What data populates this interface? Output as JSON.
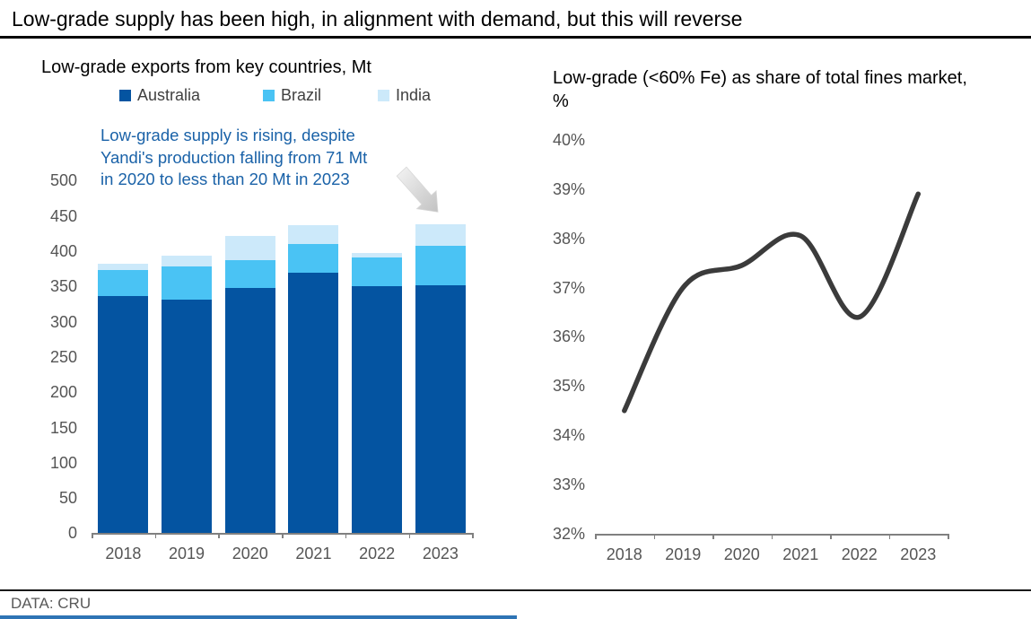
{
  "page": {
    "title": "Low-grade supply has been high, in alignment with demand, but this will reverse",
    "source": "DATA: CRU",
    "colors": {
      "title_rule": "#000000",
      "axis": "#808080",
      "tick_text": "#555555",
      "annotation_text": "#1A62A8",
      "arrow_fill_light": "#F0F0F0",
      "arrow_fill_dark": "#C4C4C4",
      "bottom_bar": "#2E74B5"
    }
  },
  "chart_data": [
    {
      "type": "bar",
      "stacked": true,
      "title": "Low-grade exports from key countries, Mt",
      "categories": [
        "2018",
        "2019",
        "2020",
        "2021",
        "2022",
        "2023"
      ],
      "series": [
        {
          "name": "Australia",
          "color": "#0454A1",
          "values": [
            337,
            331,
            348,
            370,
            350,
            352
          ]
        },
        {
          "name": "Brazil",
          "color": "#4AC3F4",
          "values": [
            36,
            47,
            39,
            40,
            41,
            55
          ]
        },
        {
          "name": "India",
          "color": "#CCE9FA",
          "values": [
            9,
            16,
            34,
            27,
            7,
            31
          ]
        }
      ],
      "totals": [
        382,
        394,
        421,
        437,
        398,
        438
      ],
      "ylim": [
        0,
        500
      ],
      "ytick_step": 50,
      "grid": false,
      "legend_position": "top",
      "annotation": "Low-grade supply is rising, despite\nYandi's production falling from 71 Mt\nin 2020 to less than 20 Mt in 2023",
      "annotation_arrow": "down-right"
    },
    {
      "type": "line",
      "title": "Low-grade (<60% Fe) as share of total fines market, %",
      "x": [
        "2018",
        "2019",
        "2020",
        "2021",
        "2022",
        "2023"
      ],
      "values": [
        34.5,
        37.0,
        37.45,
        38.05,
        36.4,
        38.9
      ],
      "ylim": [
        32,
        40
      ],
      "ytick_step": 1,
      "ytick_suffix": "%",
      "grid": false,
      "line_color": "#3B3B3B",
      "smooth": true
    }
  ]
}
